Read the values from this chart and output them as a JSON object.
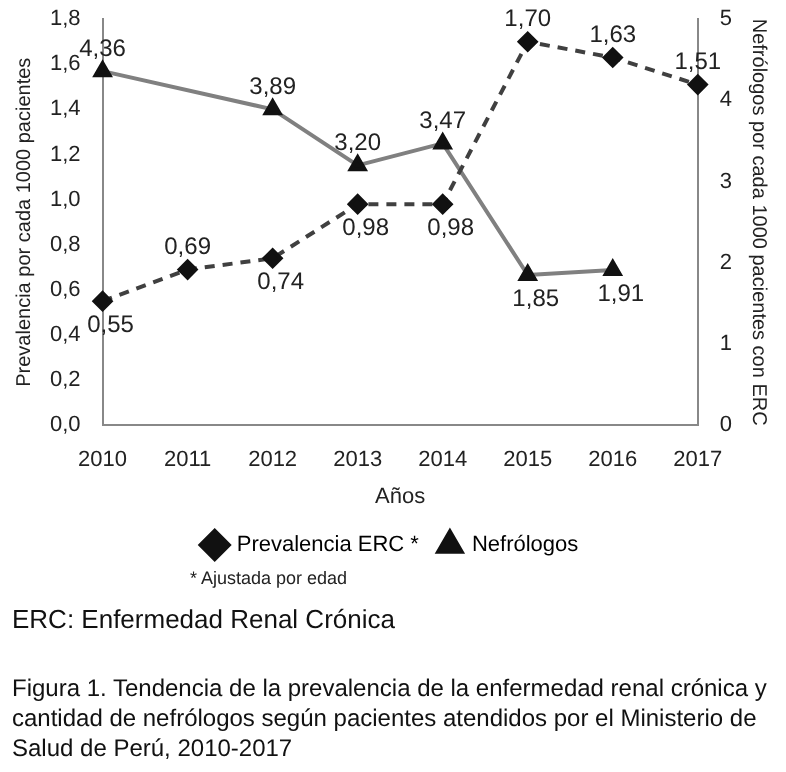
{
  "chart_data": {
    "type": "line",
    "xlabel": "Años",
    "ylabel": "Prevalencia por cada 1000 pacientes",
    "y2label": "Nefrólogos por cada 1000 pacientes con ERC",
    "categories": [
      "2010",
      "2011",
      "2012",
      "2013",
      "2014",
      "2015",
      "2016",
      "2017"
    ],
    "series": [
      {
        "name": "Prevalencia ERC *",
        "color": "#404040",
        "values": [
          0.55,
          0.69,
          0.74,
          0.98,
          0.98,
          1.7,
          1.63,
          1.51
        ],
        "value_labels": [
          "0,55",
          "0,69",
          "0,74",
          "0,98",
          "0,98",
          "1,70",
          "1,63",
          "1,51"
        ],
        "marker": "diamond",
        "line_style": "dashed"
      },
      {
        "name": "Nefrólogos",
        "color": "#808080",
        "axis": "y2",
        "values": [
          4.36,
          null,
          3.89,
          3.2,
          3.47,
          1.85,
          1.91,
          null
        ],
        "value_labels": [
          "4,36",
          null,
          "3,89",
          "3,20",
          "3,47",
          "1,85",
          "1,91",
          null
        ],
        "marker": "triangle",
        "line_style": "solid"
      }
    ],
    "ylim": [
      0,
      1.8
    ],
    "yticks": [
      {
        "value": 0,
        "label": "0,0"
      },
      {
        "value": 0.2,
        "label": "0,2"
      },
      {
        "value": 0.4,
        "label": "0,4"
      },
      {
        "value": 0.6,
        "label": "0,6"
      },
      {
        "value": 0.8,
        "label": "0,8"
      },
      {
        "value": 1,
        "label": "1,0"
      },
      {
        "value": 1.2,
        "label": "1,2"
      },
      {
        "value": 1.4,
        "label": "1,4"
      },
      {
        "value": 1.6,
        "label": "1,6"
      },
      {
        "value": 1.8,
        "label": "1,8"
      }
    ],
    "y2lim": [
      0,
      5
    ],
    "y2ticks": [
      0,
      1,
      2,
      3,
      4,
      5
    ],
    "grid": false,
    "legend": "bottom",
    "annotations": [
      "* Ajustada por edad",
      "ERC: Enfermedad Renal Crónica",
      "Figura 1. Tendencia de la prevalencia de la enfermedad renal crónica y cantidad de nefrólogos según pacientes atendidos por el Ministerio de Salud de Perú, 2010-2017"
    ]
  }
}
